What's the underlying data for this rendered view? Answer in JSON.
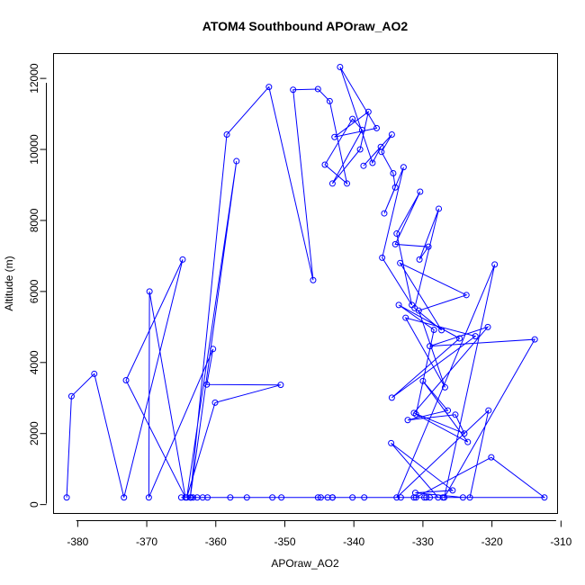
{
  "chart_data": {
    "type": "scatter",
    "title": "ATOM4 Southbound APOraw_AO2",
    "xlabel": "APOraw_AO2",
    "ylabel": "Altitude (m)",
    "xlim": [
      -383.5,
      -310.5
    ],
    "ylim": [
      -250,
      12700
    ],
    "xticks": [
      -380,
      -370,
      -360,
      -350,
      -340,
      -330,
      -320,
      -310
    ],
    "yticks": [
      0,
      2000,
      4000,
      6000,
      8000,
      10000,
      12000
    ],
    "grid": false,
    "legend": "none",
    "marker": "open-circle",
    "connected": true,
    "color": "#0000ff",
    "x": [
      -381.6,
      -380.9,
      -377.6,
      -373.3,
      -364.8,
      -373.0,
      -364.4,
      -369.6,
      -369.7,
      -360.4,
      -361.3,
      -350.6,
      -360.1,
      -364.2,
      -357.0,
      -363.7,
      -358.4,
      -352.3,
      -345.9,
      -348.8,
      -345.2,
      -343.5,
      -341.0,
      -344.2,
      -340.2,
      -338.8,
      -343.1,
      -339.1,
      -337.9,
      -342.8,
      -336.7,
      -342.0,
      -337.3,
      -336.1,
      -338.6,
      -334.5,
      -336.0,
      -334.3,
      -334.0,
      -335.6,
      -332.8,
      -335.9,
      -331.6,
      -333.8,
      -330.4,
      -334.0,
      -329.2,
      -330.5,
      -327.7,
      -331.2,
      -327.3,
      -333.3,
      -323.7,
      -330.6,
      -326.8,
      -332.5,
      -322.4,
      -334.5,
      -324.7,
      -333.5,
      -328.4,
      -331.0,
      -323.5,
      -330.0,
      -326.4,
      -332.2,
      -325.3,
      -324.0,
      -331.3,
      -320.6,
      -329.0,
      -313.8,
      -326.9,
      -319.6,
      -333.8,
      -320.5,
      -323.2,
      -333.2,
      -329.5,
      -331.0,
      -320.1,
      -312.4,
      -327.8,
      -334.6,
      -325.7,
      -331.1,
      -324.2,
      -343.1,
      -329.8,
      -340.2,
      -331.3,
      -338.5,
      -329.0,
      -343.1,
      -327.1,
      -350.5,
      -361.2,
      -351.8,
      -363.6,
      -363.3,
      -343.8,
      -365.0,
      -344.8,
      -362.7,
      -357.9,
      -363.6,
      -355.5,
      -361.9,
      -345.2
    ],
    "y": [
      200,
      3050,
      3680,
      200,
      6900,
      3500,
      200,
      6000,
      200,
      4380,
      3380,
      3370,
      2870,
      200,
      9670,
      200,
      10420,
      11760,
      6320,
      11680,
      11700,
      11360,
      9040,
      9570,
      10860,
      10550,
      9040,
      10000,
      11060,
      10350,
      10600,
      12320,
      9620,
      10070,
      9540,
      10420,
      9930,
      9330,
      8930,
      8200,
      9500,
      6950,
      5620,
      7630,
      8810,
      7330,
      7260,
      6900,
      8330,
      5530,
      4910,
      6800,
      5900,
      5460,
      3300,
      5260,
      4740,
      3010,
      4680,
      5620,
      4920,
      2540,
      1760,
      3480,
      2650,
      2380,
      2530,
      2000,
      2580,
      5000,
      4460,
      4650,
      200,
      6760,
      200,
      2650,
      200,
      200,
      200,
      200,
      1330,
      200,
      200,
      1730,
      400,
      330,
      200,
      200,
      200,
      200,
      200,
      200,
      200,
      200,
      200,
      200,
      200,
      200,
      200,
      200,
      200,
      200,
      200,
      200,
      200,
      200,
      200,
      200,
      200
    ]
  }
}
